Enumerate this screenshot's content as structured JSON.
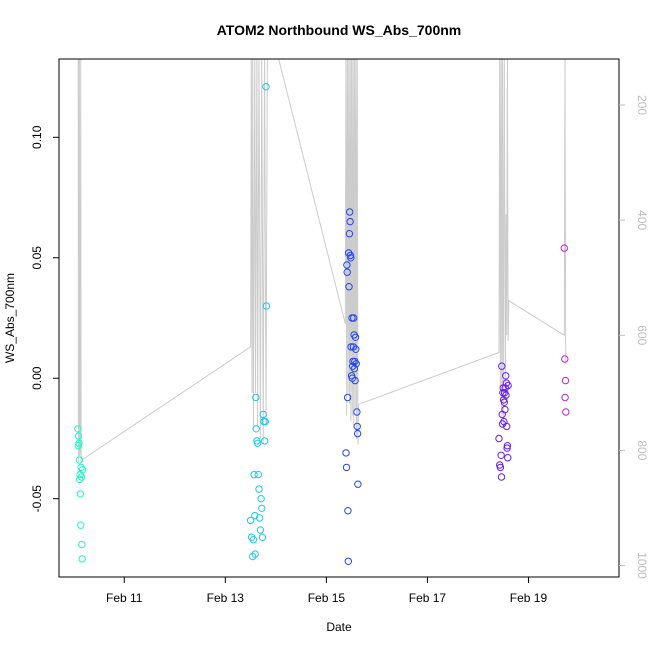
{
  "chart_data": {
    "type": "scatter",
    "title": "ATOM2 Northbound WS_Abs_700nm",
    "xlabel": "Date",
    "ylabel": "WS_Abs_700nm",
    "xlim": [
      "2016-02-09T17:00",
      "2016-02-20T19:00"
    ],
    "ylim": [
      -0.0825,
      0.1325
    ],
    "x_ticks": [
      {
        "value": "2016-02-11T00:00",
        "label": "Feb 11"
      },
      {
        "value": "2016-02-13T00:00",
        "label": "Feb 13"
      },
      {
        "value": "2016-02-15T00:00",
        "label": "Feb 15"
      },
      {
        "value": "2016-02-17T00:00",
        "label": "Feb 17"
      },
      {
        "value": "2016-02-19T00:00",
        "label": "Feb 19"
      }
    ],
    "y_ticks": [
      {
        "value": -0.05,
        "label": "-0.05"
      },
      {
        "value": 0.0,
        "label": "0.00"
      },
      {
        "value": 0.05,
        "label": "0.05"
      },
      {
        "value": 0.1,
        "label": "0.10"
      }
    ],
    "y2_ticks": [
      {
        "value": 200,
        "label": "200"
      },
      {
        "value": 400,
        "label": "400"
      },
      {
        "value": 600,
        "label": "600"
      },
      {
        "value": 800,
        "label": "800"
      },
      {
        "value": 1000,
        "label": "1000"
      }
    ],
    "y2lim": [
      1020,
      120
    ],
    "y2_color": "#bebebe",
    "grid": false,
    "legend": "none",
    "series": [
      {
        "color": "#1ef7c5",
        "points": [
          [
            "2016-02-10T02:00",
            -0.021
          ],
          [
            "2016-02-10T02:10",
            -0.028
          ],
          [
            "2016-02-10T02:20",
            -0.024
          ],
          [
            "2016-02-10T02:30",
            -0.027
          ],
          [
            "2016-02-10T02:40",
            -0.034
          ],
          [
            "2016-02-10T02:50",
            -0.042
          ],
          [
            "2016-02-10T03:00",
            -0.04
          ],
          [
            "2016-02-10T03:10",
            -0.048
          ],
          [
            "2016-02-10T03:20",
            -0.061
          ],
          [
            "2016-02-10T03:30",
            -0.037
          ],
          [
            "2016-02-10T03:40",
            -0.041
          ],
          [
            "2016-02-10T03:50",
            -0.069
          ],
          [
            "2016-02-10T04:00",
            -0.075
          ],
          [
            "2016-02-10T04:10",
            -0.038
          ]
        ]
      },
      {
        "color": "#1ec9e8",
        "points": [
          [
            "2016-02-13T12:00",
            -0.059
          ],
          [
            "2016-02-13T12:30",
            -0.066
          ],
          [
            "2016-02-13T13:00",
            -0.074
          ],
          [
            "2016-02-13T13:20",
            -0.067
          ],
          [
            "2016-02-13T13:40",
            -0.04
          ],
          [
            "2016-02-13T14:00",
            -0.057
          ],
          [
            "2016-02-13T14:10",
            -0.073
          ],
          [
            "2016-02-13T14:30",
            -0.008
          ],
          [
            "2016-02-13T14:40",
            -0.021
          ],
          [
            "2016-02-13T15:00",
            -0.026
          ],
          [
            "2016-02-13T15:20",
            -0.027
          ],
          [
            "2016-02-13T15:40",
            -0.04
          ],
          [
            "2016-02-13T16:00",
            -0.046
          ],
          [
            "2016-02-13T16:20",
            -0.058
          ],
          [
            "2016-02-13T16:40",
            -0.063
          ],
          [
            "2016-02-13T17:00",
            -0.05
          ],
          [
            "2016-02-13T17:20",
            -0.054
          ],
          [
            "2016-02-13T17:40",
            -0.066
          ],
          [
            "2016-02-13T18:00",
            -0.015
          ],
          [
            "2016-02-13T18:20",
            -0.018
          ],
          [
            "2016-02-13T18:40",
            -0.026
          ],
          [
            "2016-02-13T19:00",
            -0.018
          ],
          [
            "2016-02-13T19:20",
            0.121
          ],
          [
            "2016-02-13T19:30",
            0.03
          ]
        ]
      },
      {
        "color": "#2146f0",
        "points": [
          [
            "2016-02-15T09:20",
            -0.031
          ],
          [
            "2016-02-15T09:35",
            -0.037
          ],
          [
            "2016-02-15T09:45",
            0.047
          ],
          [
            "2016-02-15T09:55",
            0.044
          ],
          [
            "2016-02-15T10:05",
            -0.008
          ],
          [
            "2016-02-15T10:15",
            -0.055
          ],
          [
            "2016-02-15T10:25",
            -0.076
          ],
          [
            "2016-02-15T10:35",
            0.052
          ],
          [
            "2016-02-15T10:45",
            0.038
          ],
          [
            "2016-02-15T10:55",
            0.06
          ],
          [
            "2016-02-15T11:05",
            0.069
          ],
          [
            "2016-02-15T11:15",
            0.065
          ],
          [
            "2016-02-15T11:25",
            0.051
          ],
          [
            "2016-02-15T11:35",
            0.05
          ],
          [
            "2016-02-15T11:45",
            0.013
          ],
          [
            "2016-02-15T12:00",
            0.001
          ],
          [
            "2016-02-15T12:10",
            0.025
          ],
          [
            "2016-02-15T12:20",
            0.0
          ],
          [
            "2016-02-15T12:30",
            0.005
          ],
          [
            "2016-02-15T12:40",
            0.007
          ],
          [
            "2016-02-15T12:50",
            0.013
          ],
          [
            "2016-02-15T13:00",
            0.025
          ],
          [
            "2016-02-15T13:10",
            0.018
          ],
          [
            "2016-02-15T13:20",
            0.004
          ],
          [
            "2016-02-15T13:30",
            0.007
          ],
          [
            "2016-02-15T13:40",
            -0.001
          ],
          [
            "2016-02-15T13:50",
            0.017
          ],
          [
            "2016-02-15T14:00",
            0.012
          ],
          [
            "2016-02-15T14:10",
            0.006
          ],
          [
            "2016-02-15T14:30",
            -0.014
          ],
          [
            "2016-02-15T14:40",
            -0.02
          ],
          [
            "2016-02-15T14:50",
            -0.023
          ],
          [
            "2016-02-15T15:00",
            -0.044
          ]
        ]
      },
      {
        "color": "#6a1ef0",
        "points": [
          [
            "2016-02-18T10:00",
            -0.025
          ],
          [
            "2016-02-18T10:20",
            -0.036
          ],
          [
            "2016-02-18T10:40",
            -0.037
          ],
          [
            "2016-02-18T11:00",
            -0.032
          ],
          [
            "2016-02-18T11:10",
            -0.041
          ],
          [
            "2016-02-18T11:20",
            0.005
          ],
          [
            "2016-02-18T11:30",
            -0.015
          ],
          [
            "2016-02-18T11:40",
            -0.019
          ],
          [
            "2016-02-18T11:50",
            -0.006
          ],
          [
            "2016-02-18T12:00",
            -0.004
          ],
          [
            "2016-02-18T12:10",
            -0.009
          ],
          [
            "2016-02-18T12:20",
            -0.018
          ],
          [
            "2016-02-18T12:30",
            -0.01
          ],
          [
            "2016-02-18T12:40",
            -0.006
          ],
          [
            "2016-02-18T12:50",
            -0.013
          ],
          [
            "2016-02-18T13:00",
            -0.004
          ],
          [
            "2016-02-18T13:10",
            0.001
          ],
          [
            "2016-02-18T13:20",
            -0.007
          ],
          [
            "2016-02-18T13:30",
            -0.002
          ],
          [
            "2016-02-18T13:40",
            -0.02
          ],
          [
            "2016-02-18T13:50",
            -0.029
          ],
          [
            "2016-02-18T14:00",
            -0.028
          ],
          [
            "2016-02-18T14:10",
            -0.033
          ],
          [
            "2016-02-18T14:20",
            -0.003
          ]
        ]
      },
      {
        "color": "#c21ee0",
        "points": [
          [
            "2016-02-19T17:00",
            0.054
          ],
          [
            "2016-02-19T17:15",
            0.008
          ],
          [
            "2016-02-19T17:25",
            -0.008
          ],
          [
            "2016-02-19T17:35",
            -0.001
          ],
          [
            "2016-02-19T17:45",
            -0.014
          ]
        ]
      }
    ],
    "secondary_line": {
      "color": "#cccccc",
      "axis": "right",
      "points": [
        [
          "2016-02-10T02:00",
          1.0
        ],
        [
          "2016-02-10T02:06",
          100
        ],
        [
          "2016-02-10T02:12",
          820
        ],
        [
          "2016-02-10T02:18",
          100
        ],
        [
          "2016-02-10T02:24",
          790
        ],
        [
          "2016-02-10T02:30",
          100
        ],
        [
          "2016-02-10T02:36",
          800
        ],
        [
          "2016-02-10T02:42",
          100
        ],
        [
          "2016-02-10T02:48",
          810
        ],
        [
          "2016-02-10T03:00",
          805
        ],
        [
          "2016-02-10T03:20",
          100
        ],
        [
          "2016-02-10T03:30",
          820
        ],
        [
          "2016-02-10T03:40",
          810
        ],
        [
          "2016-02-10T04:00",
          815
        ],
        [
          "2016-02-10T04:30",
          815
        ],
        [
          "2016-02-13T12:00",
          620
        ],
        [
          "2016-02-13T12:20",
          100
        ],
        [
          "2016-02-13T12:40",
          700
        ],
        [
          "2016-02-13T13:00",
          100
        ],
        [
          "2016-02-13T13:20",
          760
        ],
        [
          "2016-02-13T14:00",
          100
        ],
        [
          "2016-02-13T14:20",
          700
        ],
        [
          "2016-02-13T15:00",
          100
        ],
        [
          "2016-02-13T15:20",
          760
        ],
        [
          "2016-02-13T16:00",
          100
        ],
        [
          "2016-02-13T16:40",
          780
        ],
        [
          "2016-02-13T17:20",
          100
        ],
        [
          "2016-02-13T18:00",
          790
        ],
        [
          "2016-02-13T18:40",
          100
        ],
        [
          "2016-02-13T19:20",
          760
        ],
        [
          "2016-02-13T20:00",
          100
        ],
        [
          "2016-02-14T00:00",
          100
        ],
        [
          "2016-02-15T09:00",
          580
        ],
        [
          "2016-02-15T09:20",
          100
        ],
        [
          "2016-02-15T09:40",
          740
        ],
        [
          "2016-02-15T10:00",
          100
        ],
        [
          "2016-02-15T10:20",
          700
        ],
        [
          "2016-02-15T10:40",
          100
        ],
        [
          "2016-02-15T11:00",
          720
        ],
        [
          "2016-02-15T11:20",
          100
        ],
        [
          "2016-02-15T11:40",
          750
        ],
        [
          "2016-02-15T12:00",
          100
        ],
        [
          "2016-02-15T12:20",
          740
        ],
        [
          "2016-02-15T12:40",
          100
        ],
        [
          "2016-02-15T13:00",
          760
        ],
        [
          "2016-02-15T13:20",
          100
        ],
        [
          "2016-02-15T13:40",
          730
        ],
        [
          "2016-02-15T14:00",
          100
        ],
        [
          "2016-02-15T14:20",
          780
        ],
        [
          "2016-02-15T14:40",
          100
        ],
        [
          "2016-02-15T15:00",
          790
        ],
        [
          "2016-02-15T15:20",
          720
        ],
        [
          "2016-02-18T10:00",
          630
        ],
        [
          "2016-02-18T10:20",
          100
        ],
        [
          "2016-02-18T10:40",
          690
        ],
        [
          "2016-02-18T11:00",
          100
        ],
        [
          "2016-02-18T11:20",
          740
        ],
        [
          "2016-02-18T11:40",
          100
        ],
        [
          "2016-02-18T12:00",
          760
        ],
        [
          "2016-02-18T12:30",
          100
        ],
        [
          "2016-02-18T13:00",
          700
        ],
        [
          "2016-02-18T13:20",
          390
        ],
        [
          "2016-02-18T13:40",
          600
        ],
        [
          "2016-02-18T14:00",
          100
        ],
        [
          "2016-02-18T14:20",
          610
        ],
        [
          "2016-02-18T14:40",
          540
        ],
        [
          "2016-02-19T17:00",
          600
        ],
        [
          "2016-02-19T17:20",
          100
        ],
        [
          "2016-02-19T17:40",
          650
        ]
      ]
    }
  }
}
